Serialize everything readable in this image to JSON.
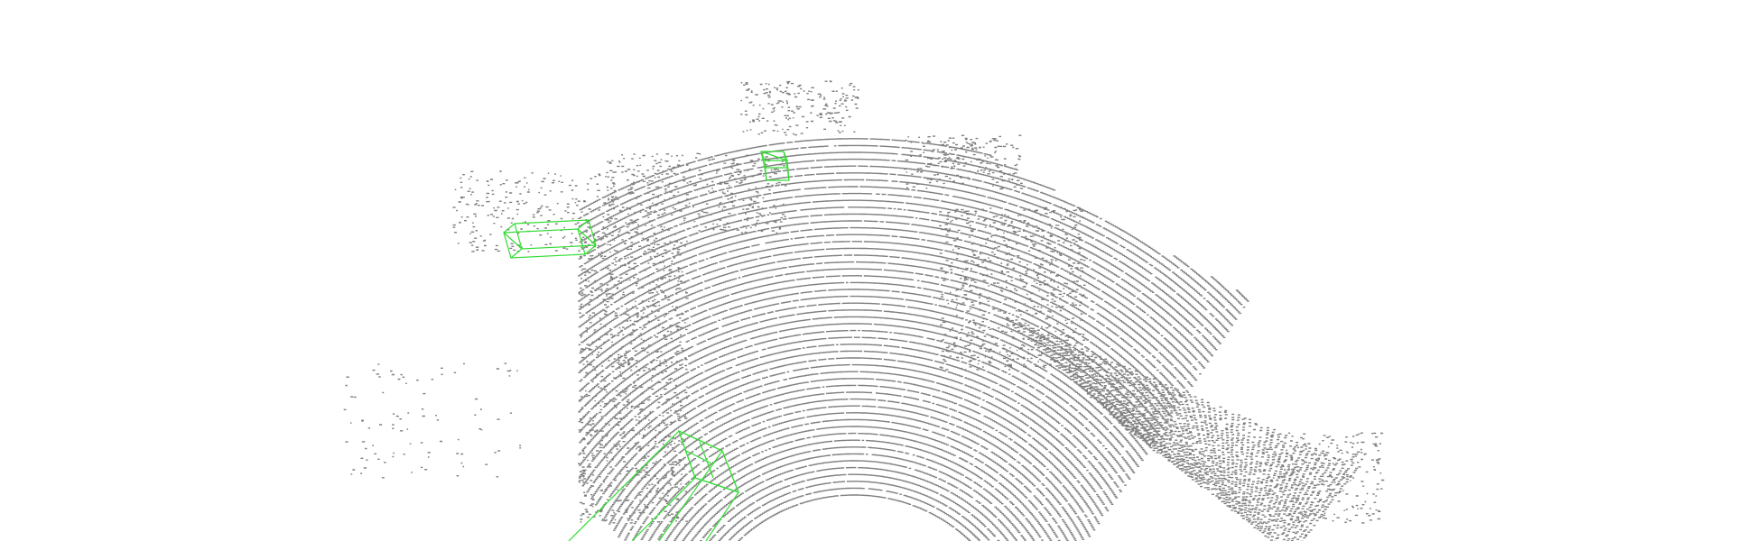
{
  "scene": {
    "type": "lidar-point-cloud-with-3d-boxes",
    "background_color": "#ffffff",
    "point_color": "#7f7f7f",
    "box_color": "#33dd33",
    "bounding_boxes": [
      {
        "name": "box-left-vehicle"
      },
      {
        "name": "box-far-object"
      },
      {
        "name": "box-near-vehicle"
      }
    ]
  }
}
